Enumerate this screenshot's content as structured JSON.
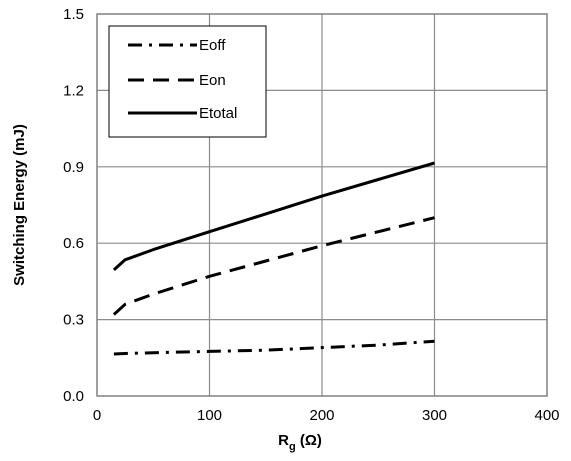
{
  "chart_data": {
    "type": "line",
    "title": "",
    "xlabel_main": "R",
    "xlabel_sub": "g",
    "xlabel_unit": " (Ω)",
    "ylabel": "Switching Energy  (mJ)",
    "xlim": [
      0,
      400
    ],
    "ylim": [
      0,
      1.5
    ],
    "x_ticks": [
      0,
      100,
      200,
      300,
      400
    ],
    "y_ticks": [
      0.0,
      0.3,
      0.6,
      0.9,
      1.2,
      1.5
    ],
    "x_tick_labels": [
      "0",
      "100",
      "200",
      "300",
      "400"
    ],
    "y_tick_labels": [
      "0.0",
      "0.3",
      "0.6",
      "0.9",
      "1.2",
      "1.5"
    ],
    "grid": true,
    "legend_position": "top-left",
    "series": [
      {
        "name": "Eoff",
        "style": "dash-dot",
        "x": [
          15,
          25,
          50,
          100,
          150,
          200,
          250,
          300
        ],
        "y": [
          0.165,
          0.167,
          0.17,
          0.175,
          0.18,
          0.19,
          0.2,
          0.215
        ]
      },
      {
        "name": "Eon",
        "style": "dashed",
        "x": [
          15,
          25,
          50,
          100,
          150,
          200,
          250,
          300
        ],
        "y": [
          0.32,
          0.36,
          0.4,
          0.47,
          0.53,
          0.59,
          0.645,
          0.7
        ]
      },
      {
        "name": "Etotal",
        "style": "solid",
        "x": [
          15,
          25,
          50,
          100,
          150,
          200,
          250,
          300
        ],
        "y": [
          0.495,
          0.535,
          0.575,
          0.645,
          0.715,
          0.785,
          0.85,
          0.915
        ]
      }
    ]
  }
}
